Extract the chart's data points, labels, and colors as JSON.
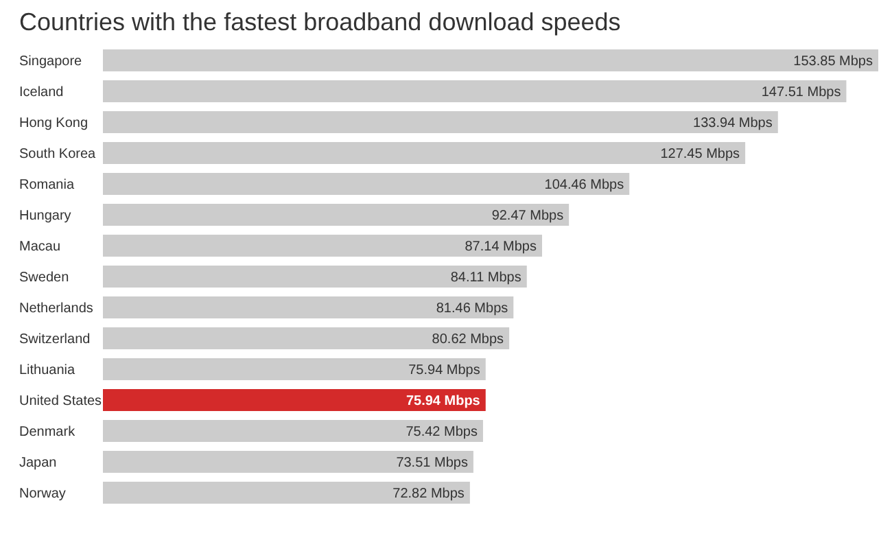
{
  "chart_data": {
    "type": "bar",
    "orientation": "horizontal",
    "title": "Countries with the fastest broadband download speeds",
    "categories": [
      "Singapore",
      "Iceland",
      "Hong Kong",
      "South Korea",
      "Romania",
      "Hungary",
      "Macau",
      "Sweden",
      "Netherlands",
      "Switzerland",
      "Lithuania",
      "United States",
      "Denmark",
      "Japan",
      "Norway"
    ],
    "values": [
      153.85,
      147.51,
      133.94,
      127.45,
      104.46,
      92.47,
      87.14,
      84.11,
      81.46,
      80.62,
      75.94,
      75.94,
      75.42,
      73.51,
      72.82
    ],
    "value_labels": [
      "153.85 Mbps",
      "147.51 Mbps",
      "133.94 Mbps",
      "127.45 Mbps",
      "104.46 Mbps",
      "92.47 Mbps",
      "87.14 Mbps",
      "84.11 Mbps",
      "81.46 Mbps",
      "80.62 Mbps",
      "75.94 Mbps",
      "75.94 Mbps",
      "75.42 Mbps",
      "73.51 Mbps",
      "72.82 Mbps"
    ],
    "colors": [
      "#cccccc",
      "#cccccc",
      "#cccccc",
      "#cccccc",
      "#cccccc",
      "#cccccc",
      "#cccccc",
      "#cccccc",
      "#cccccc",
      "#cccccc",
      "#cccccc",
      "#d42a2a",
      "#cccccc",
      "#cccccc",
      "#cccccc"
    ],
    "xlim": [
      0,
      153.85
    ]
  }
}
